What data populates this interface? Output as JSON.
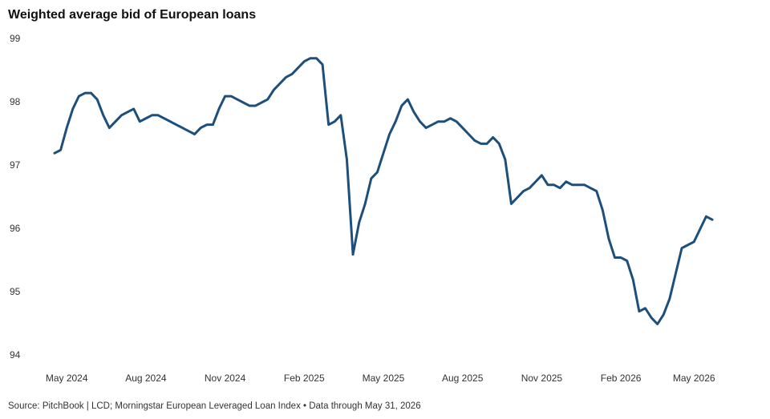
{
  "chart_data": {
    "type": "line",
    "title": "Weighted average bid of European loans",
    "source": "Source: PitchBook | LCD; Morningstar European Leveraged Loan Index • Data through May 31, 2026",
    "categories": [
      null,
      null,
      "May 2024",
      null,
      null,
      null,
      null,
      null,
      null,
      null,
      null,
      null,
      null,
      null,
      null,
      "Aug 2024",
      null,
      null,
      null,
      null,
      null,
      null,
      null,
      null,
      null,
      null,
      null,
      null,
      "Nov 2024",
      null,
      null,
      null,
      null,
      null,
      null,
      null,
      null,
      null,
      null,
      null,
      null,
      "Feb 2025",
      null,
      null,
      null,
      null,
      null,
      null,
      null,
      null,
      null,
      null,
      null,
      null,
      "May 2025",
      null,
      null,
      null,
      null,
      null,
      null,
      null,
      null,
      null,
      null,
      null,
      null,
      "Aug 2025",
      null,
      null,
      null,
      null,
      null,
      null,
      null,
      null,
      null,
      null,
      null,
      null,
      "Nov 2025",
      null,
      null,
      null,
      null,
      null,
      null,
      null,
      null,
      null,
      null,
      null,
      null,
      "Feb 2026",
      null,
      null,
      null,
      null,
      null,
      null,
      null,
      null,
      null,
      null,
      null,
      "May 2026",
      null,
      null,
      null
    ],
    "values": [
      97.2,
      97.25,
      97.6,
      97.9,
      98.1,
      98.15,
      98.15,
      98.05,
      97.8,
      97.6,
      97.7,
      97.8,
      97.85,
      97.9,
      97.7,
      97.75,
      97.8,
      97.8,
      97.75,
      97.7,
      97.65,
      97.6,
      97.55,
      97.5,
      97.6,
      97.65,
      97.65,
      97.9,
      98.1,
      98.1,
      98.05,
      98.0,
      97.95,
      97.95,
      98.0,
      98.05,
      98.2,
      98.3,
      98.4,
      98.45,
      98.55,
      98.65,
      98.7,
      98.7,
      98.6,
      97.65,
      97.7,
      97.8,
      97.1,
      95.6,
      96.1,
      96.4,
      96.8,
      96.9,
      97.2,
      97.5,
      97.7,
      97.95,
      98.05,
      97.85,
      97.7,
      97.6,
      97.65,
      97.7,
      97.7,
      97.75,
      97.7,
      97.6,
      97.5,
      97.4,
      97.35,
      97.35,
      97.45,
      97.35,
      97.1,
      96.4,
      96.5,
      96.6,
      96.65,
      96.75,
      96.85,
      96.7,
      96.7,
      96.65,
      96.75,
      96.7,
      96.7,
      96.7,
      96.65,
      96.6,
      96.3,
      95.85,
      95.55,
      95.55,
      95.5,
      95.2,
      94.7,
      94.75,
      94.6,
      94.5,
      94.65,
      94.9,
      95.3,
      95.7,
      95.75,
      95.8,
      96.0,
      96.2,
      96.15
    ],
    "color": "#1d4f7c",
    "ylim": [
      94,
      99
    ],
    "yticks": [
      94,
      95,
      96,
      97,
      98,
      99
    ],
    "grid": false
  }
}
